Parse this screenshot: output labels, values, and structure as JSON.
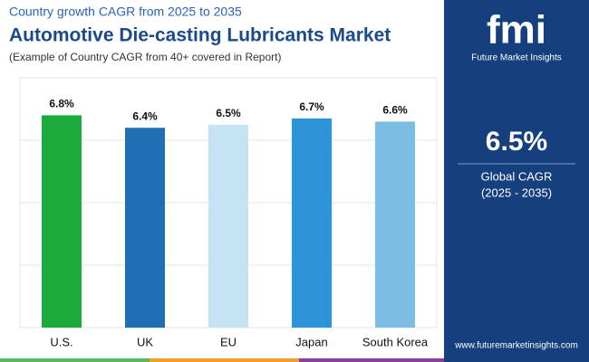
{
  "header": {
    "kicker": "Country growth CAGR from 2025 to 2035",
    "title": "Automotive Die-casting Lubricants Market",
    "subtitle": "(Example of Country CAGR from 40+ covered in Report)"
  },
  "chart_data": {
    "type": "bar",
    "categories": [
      "U.S.",
      "UK",
      "EU",
      "Japan",
      "South Korea"
    ],
    "values": [
      6.8,
      6.4,
      6.5,
      6.7,
      6.6
    ],
    "value_labels": [
      "6.8%",
      "6.4%",
      "6.5%",
      "6.7%",
      "6.6%"
    ],
    "colors": [
      "#1aab3c",
      "#1f6fb2",
      "#c5e3f3",
      "#2f93d8",
      "#7ebde3"
    ],
    "ylim": [
      0,
      8
    ],
    "yticks": [
      0,
      2,
      4,
      6,
      8
    ],
    "grid": true
  },
  "sidebar": {
    "logo_mark": "fmi",
    "logo_text": "Future Market Insights",
    "global_value": "6.5%",
    "global_label": "Global CAGR",
    "global_period": "(2025 - 2035)",
    "website": "www.futuremarketinsights.com"
  }
}
